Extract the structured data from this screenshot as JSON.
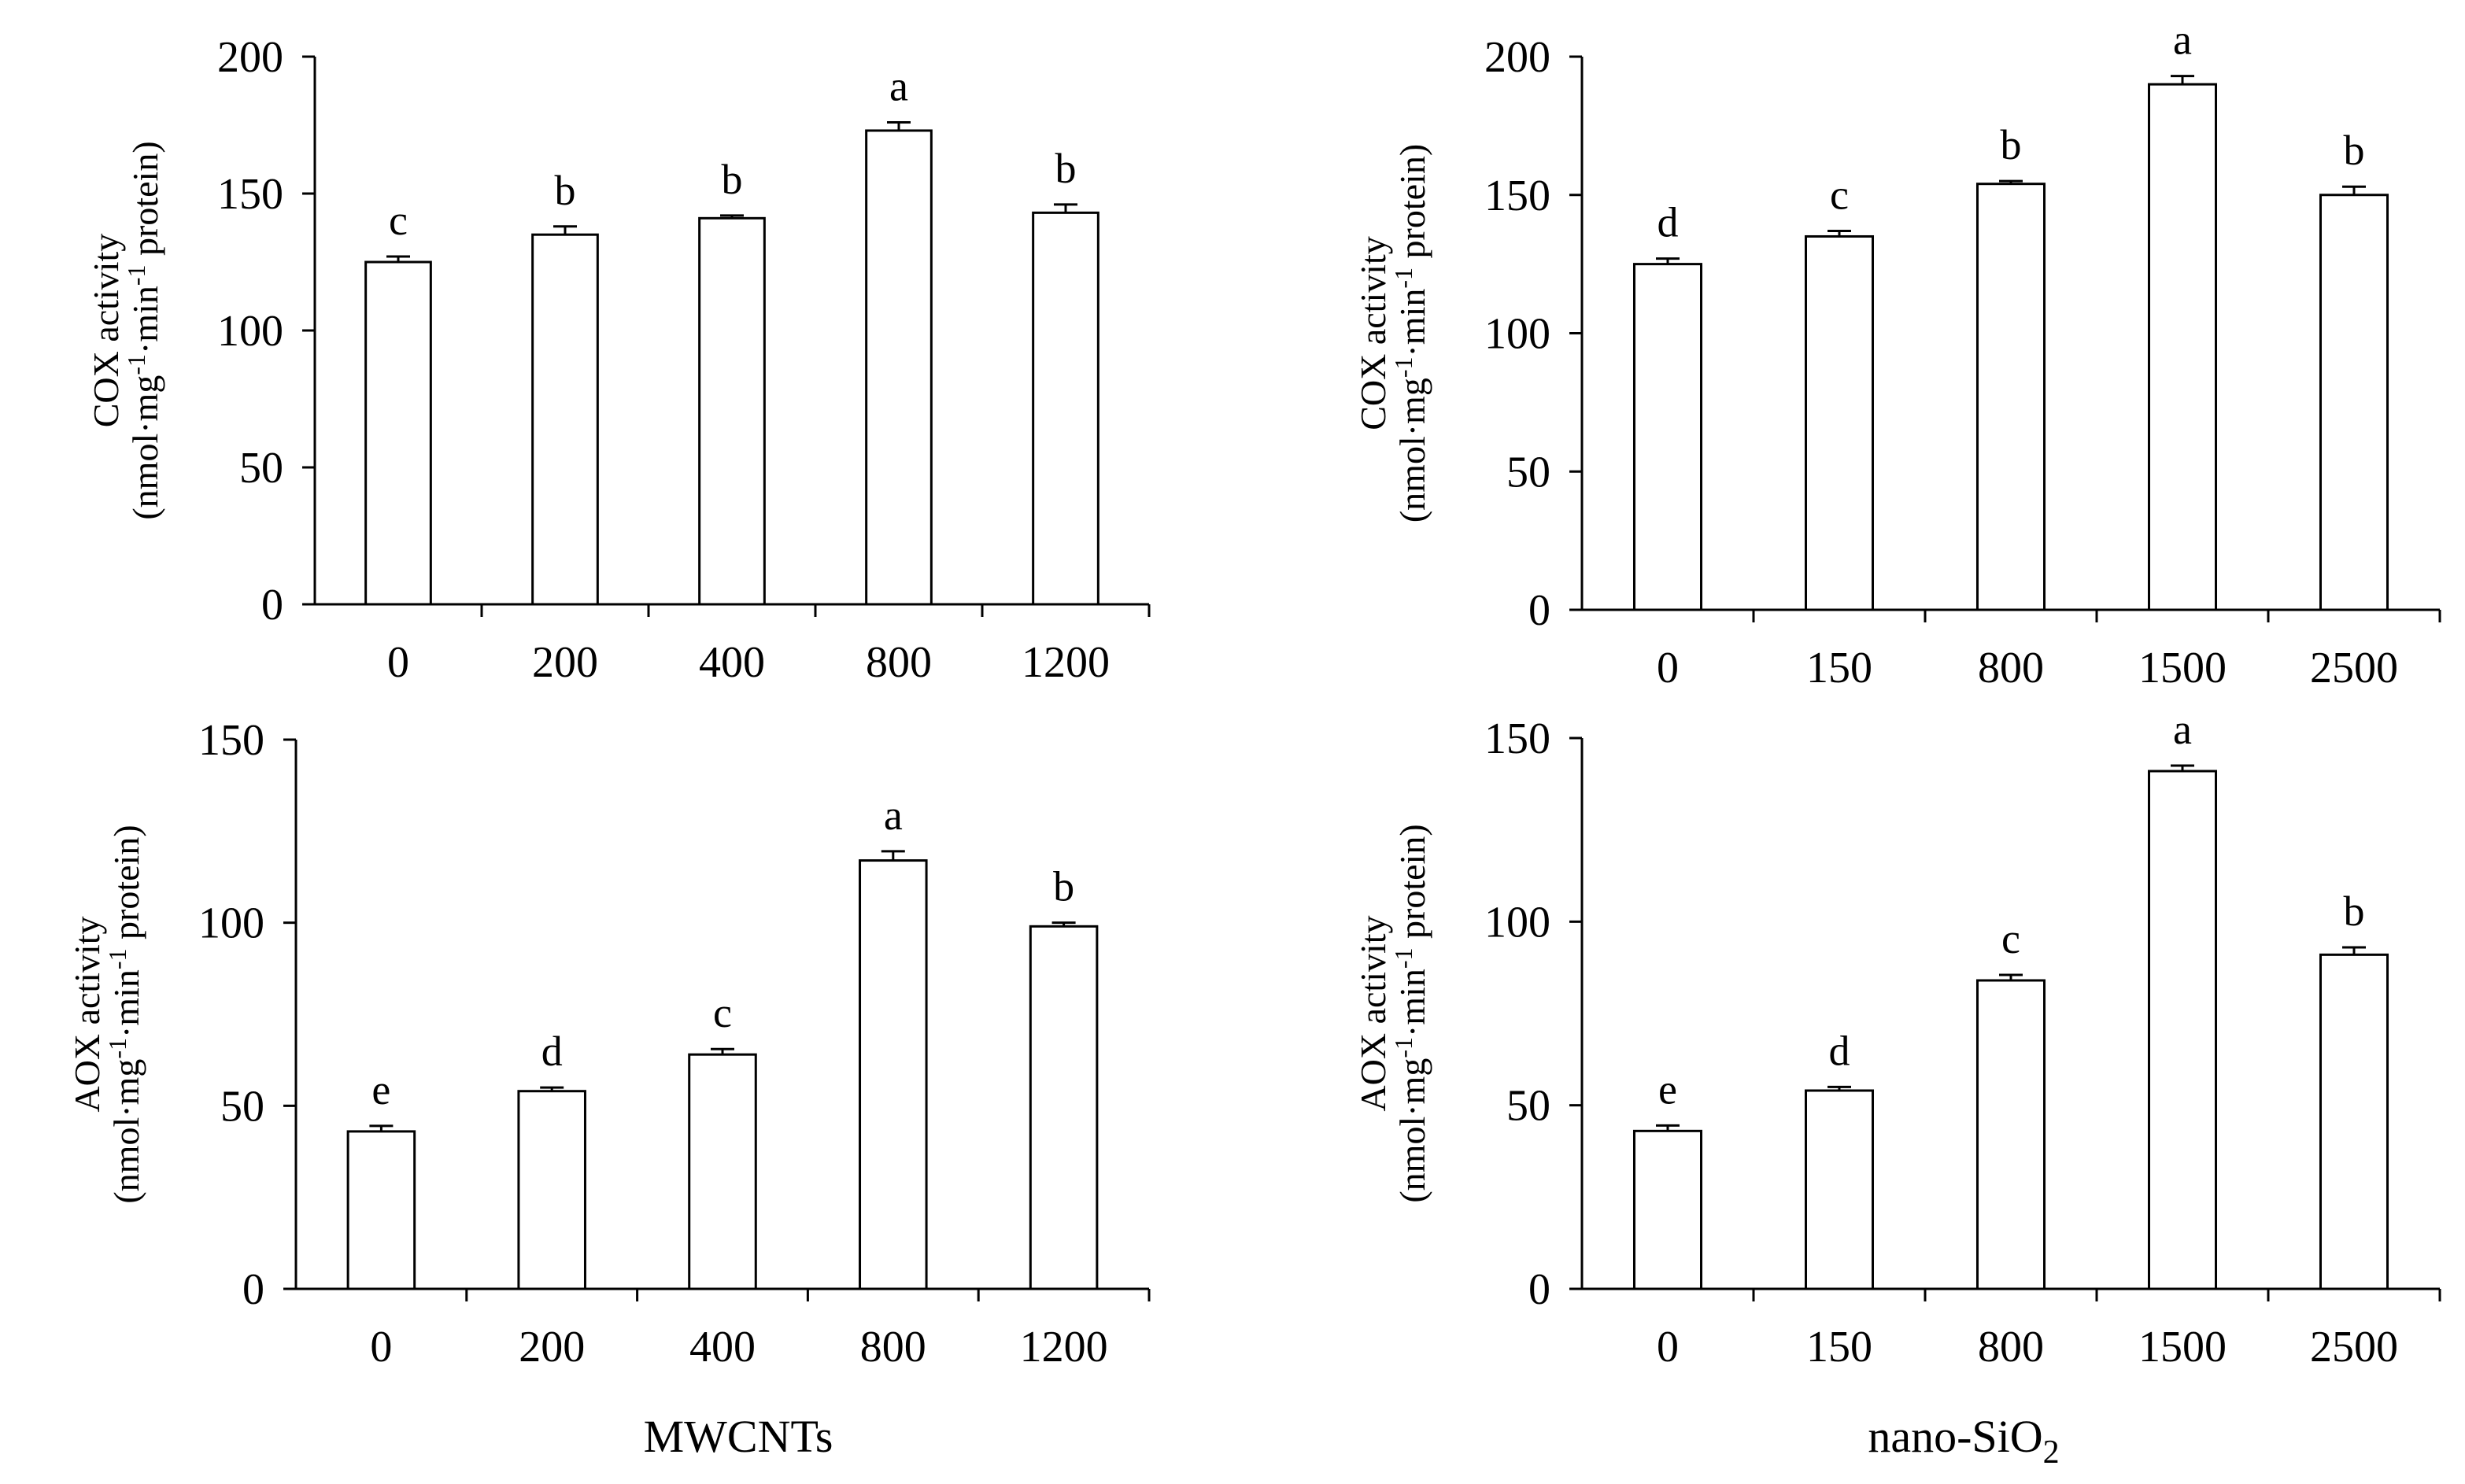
{
  "figure": {
    "x_titles": {
      "left": "MWCNTs",
      "right_base": "nano-SiO",
      "right_sub": "2"
    }
  },
  "chart_data": [
    {
      "id": "cox-mwcnts",
      "type": "bar",
      "categories": [
        "0",
        "200",
        "400",
        "800",
        "1200"
      ],
      "values": [
        125,
        135,
        141,
        173,
        143
      ],
      "errors": [
        2,
        3,
        1,
        3,
        3
      ],
      "letters": [
        "c",
        "b",
        "b",
        "a",
        "b"
      ],
      "ylim": [
        0,
        200
      ],
      "yticks": [
        0,
        50,
        100,
        150,
        200
      ],
      "ylabel_line1": "COX activity",
      "ylabel_line2": "(nmol·mg-1·min-1 protein)",
      "xlabel": ""
    },
    {
      "id": "cox-nanosio2",
      "type": "bar",
      "categories": [
        "0",
        "150",
        "800",
        "1500",
        "2500"
      ],
      "values": [
        125,
        135,
        154,
        190,
        150
      ],
      "errors": [
        2,
        2,
        1,
        3,
        3
      ],
      "letters": [
        "d",
        "c",
        "b",
        "a",
        "b"
      ],
      "ylim": [
        0,
        200
      ],
      "yticks": [
        0,
        50,
        100,
        150,
        200
      ],
      "ylabel_line1": "COX activity",
      "ylabel_line2": "(nmol·mg-1·min-1 protein)",
      "xlabel": ""
    },
    {
      "id": "aox-mwcnts",
      "type": "bar",
      "categories": [
        "0",
        "200",
        "400",
        "800",
        "1200"
      ],
      "values": [
        43,
        54,
        64,
        117,
        99
      ],
      "errors": [
        1.5,
        1,
        1.5,
        2.5,
        1
      ],
      "letters": [
        "e",
        "d",
        "c",
        "a",
        "b"
      ],
      "ylim": [
        0,
        150
      ],
      "yticks": [
        0,
        50,
        100,
        150
      ],
      "ylabel_line1": "AOX activity",
      "ylabel_line2": "(nmol·mg-1·min-1 protein)",
      "xlabel": "MWCNTs"
    },
    {
      "id": "aox-nanosio2",
      "type": "bar",
      "categories": [
        "0",
        "150",
        "800",
        "1500",
        "2500"
      ],
      "values": [
        43,
        54,
        84,
        141,
        91
      ],
      "errors": [
        1.5,
        1,
        1.5,
        1.5,
        2
      ],
      "letters": [
        "e",
        "d",
        "c",
        "a",
        "b"
      ],
      "ylim": [
        0,
        150
      ],
      "yticks": [
        0,
        50,
        100,
        150
      ],
      "ylabel_line1": "AOX activity",
      "ylabel_line2": "(nmol·mg-1·min-1 protein)",
      "xlabel": "nano-SiO2"
    }
  ]
}
